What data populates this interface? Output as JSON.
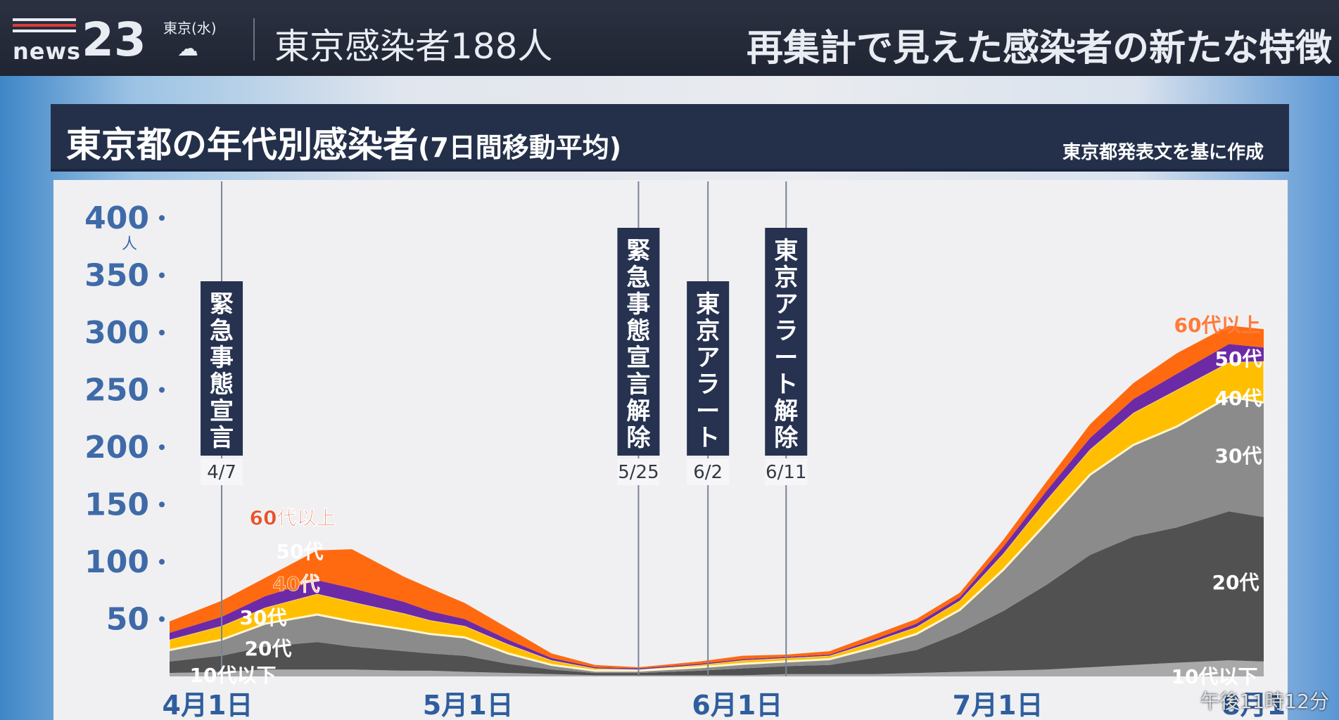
{
  "header": {
    "logo_text": "news",
    "logo_number": "23",
    "weather_location": "東京(水)",
    "weather_icon": "cloud-icon",
    "headline_left": "東京感染者188人",
    "headline_right": "再集計で見えた感染者の新たな特徴"
  },
  "chart_title": {
    "main": "東京都の年代別感染者",
    "sub": "(7日間移動平均)",
    "note": "東京都発表文を基に作成"
  },
  "timestamp": "午後11時12分",
  "chart_data": {
    "type": "area",
    "stacked": true,
    "x_dates": [
      "4/1",
      "4/7",
      "4/12",
      "4/18",
      "4/22",
      "4/28",
      "5/1",
      "5/5",
      "5/10",
      "5/15",
      "5/20",
      "5/25",
      "6/1",
      "6/6",
      "6/11",
      "6/16",
      "6/21",
      "6/26",
      "7/1",
      "7/6",
      "7/11",
      "7/16",
      "7/21",
      "7/26",
      "8/1",
      "8/5"
    ],
    "x_tick_labels": [
      "4月1日",
      "5月1日",
      "6月1日",
      "7月1日",
      "8月1日"
    ],
    "x_tick_dates": [
      "4/1",
      "5/1",
      "6/1",
      "7/1",
      "8/1"
    ],
    "y_unit": "人",
    "ylim": [
      0,
      400
    ],
    "yticks": [
      50,
      100,
      150,
      200,
      250,
      300,
      350,
      400
    ],
    "series": [
      {
        "name": "10代以下",
        "color": "#a9a9a9",
        "values": [
          3,
          4,
          6,
          6,
          6,
          5,
          5,
          4,
          3,
          2,
          1,
          1,
          1,
          1,
          2,
          2,
          2,
          3,
          4,
          5,
          6,
          8,
          10,
          12,
          14,
          13
        ]
      },
      {
        "name": "20代",
        "color": "#515151",
        "values": [
          10,
          14,
          20,
          24,
          20,
          17,
          15,
          14,
          8,
          4,
          2,
          2,
          4,
          6,
          7,
          8,
          14,
          20,
          34,
          52,
          74,
          98,
          112,
          118,
          130,
          126
        ]
      },
      {
        "name": "30代",
        "color": "#8b8b8b",
        "values": [
          10,
          14,
          20,
          24,
          22,
          19,
          17,
          16,
          9,
          4,
          2,
          2,
          3,
          4,
          4,
          5,
          9,
          14,
          20,
          36,
          54,
          70,
          80,
          88,
          100,
          100
        ]
      },
      {
        "name": "40代",
        "color": "#ffbf00",
        "values": [
          9,
          12,
          14,
          18,
          17,
          14,
          12,
          10,
          8,
          4,
          2,
          1,
          2,
          3,
          3,
          3,
          5,
          6,
          8,
          14,
          20,
          22,
          28,
          32,
          30,
          36
        ]
      },
      {
        "name": "50代",
        "color": "#6d2aa6",
        "values": [
          6,
          8,
          10,
          12,
          12,
          10,
          8,
          6,
          4,
          2,
          1,
          1,
          1,
          1,
          1,
          1,
          2,
          3,
          3,
          6,
          8,
          10,
          12,
          14,
          16,
          12
        ]
      },
      {
        "name": "60代以上",
        "color": "#ff6a10",
        "values": [
          10,
          14,
          16,
          26,
          34,
          22,
          20,
          14,
          10,
          4,
          2,
          1,
          2,
          3,
          2,
          3,
          4,
          4,
          4,
          6,
          8,
          12,
          14,
          18,
          16,
          16
        ]
      }
    ],
    "events": [
      {
        "label": "緊急事態宣言",
        "date": "4/7"
      },
      {
        "label": "緊急事態宣言解除",
        "date": "5/25"
      },
      {
        "label": "東京アラート",
        "date": "6/2"
      },
      {
        "label": "東京アラート解除",
        "date": "6/11"
      }
    ],
    "left_series_labels": [
      {
        "name": "60代以上",
        "color": "#e8512a"
      },
      {
        "name": "50代",
        "color": "#ffffff"
      },
      {
        "name": "40代",
        "color": "#ff7a1a"
      },
      {
        "name": "30代",
        "color": "#ffffff"
      },
      {
        "name": "20代",
        "color": "#ffffff"
      },
      {
        "name": "10代以下",
        "color": "#ffffff"
      }
    ],
    "right_series_labels": [
      {
        "name": "60代以上",
        "color": "#ff7a3a"
      },
      {
        "name": "50代",
        "color": "#ffffff"
      },
      {
        "name": "40代",
        "color": "#ffffff"
      },
      {
        "name": "30代",
        "color": "#ffffff"
      },
      {
        "name": "20代",
        "color": "#ffffff"
      },
      {
        "name": "10代以下",
        "color": "#ffffff"
      }
    ]
  }
}
